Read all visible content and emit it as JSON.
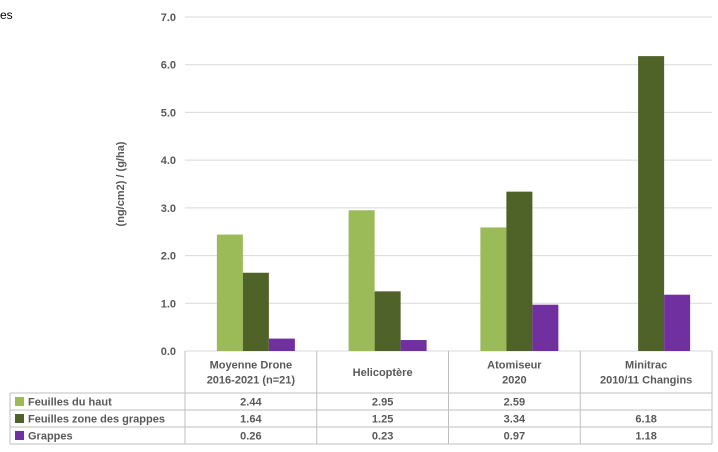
{
  "corner_text": "es",
  "colors": {
    "feuilles_haut": "#9BBB59",
    "feuilles_zone": "#4F6228",
    "grappes": "#7030A0",
    "grid": "#D9D9D9",
    "text": "#595959"
  },
  "chart_data": {
    "type": "bar",
    "ylabel": "(ng/cm2) / (g/ha)",
    "ylim": [
      0,
      7
    ],
    "yticks": [
      "0.0",
      "1.0",
      "2.0",
      "3.0",
      "4.0",
      "5.0",
      "6.0",
      "7.0"
    ],
    "categories": [
      [
        "Moyenne Drone",
        "2016-2021 (n=21)"
      ],
      [
        "Helicoptère"
      ],
      [
        "Atomiseur",
        "2020"
      ],
      [
        "Minitrac",
        "2010/11 Changins"
      ]
    ],
    "series": [
      {
        "name": "Feuilles du haut",
        "values": [
          2.44,
          2.95,
          2.59,
          null
        ],
        "labels": [
          "2.44",
          "2.95",
          "2.59",
          ""
        ]
      },
      {
        "name": "Feuilles zone des grappes",
        "values": [
          1.64,
          1.25,
          3.34,
          6.18
        ],
        "labels": [
          "1.64",
          "1.25",
          "3.34",
          "6.18"
        ]
      },
      {
        "name": "Grappes",
        "values": [
          0.26,
          0.23,
          0.97,
          1.18
        ],
        "labels": [
          "0.26",
          "0.23",
          "0.97",
          "1.18"
        ]
      }
    ],
    "grid": true,
    "legend": "table-left"
  }
}
